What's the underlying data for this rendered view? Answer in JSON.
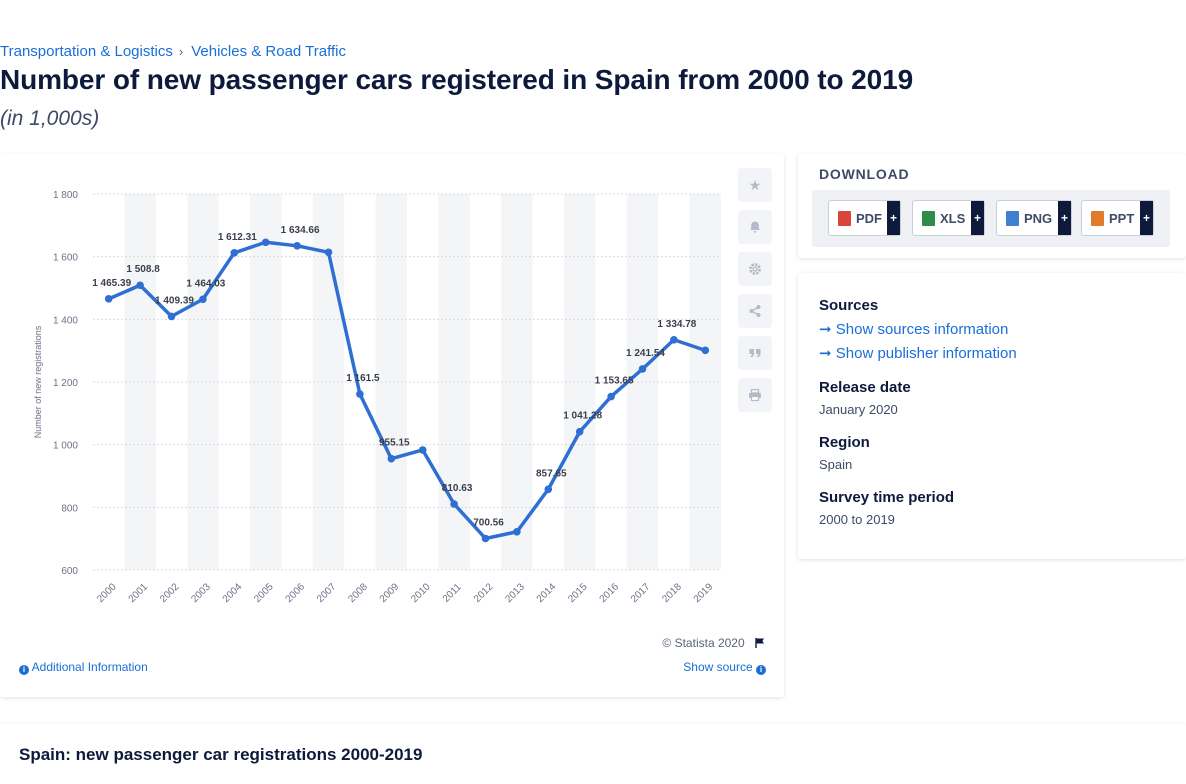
{
  "breadcrumb": [
    "Transportation & Logistics",
    "Vehicles & Road Traffic"
  ],
  "title": "Number of new passenger cars registered in Spain from 2000 to 2019",
  "subtitle": "(in 1,000s)",
  "chart_footer": {
    "copyright": "© Statista 2020",
    "additional_info": "Additional Information",
    "show_source": "Show source"
  },
  "colors": {
    "line": "#2f6ed2",
    "accent": "#1a6ed8",
    "dark": "#0d1a3b"
  },
  "tool_icons": [
    "star-icon",
    "bell-icon",
    "gear-icon",
    "share-icon",
    "quote-icon",
    "print-icon"
  ],
  "download": {
    "title": "DOWNLOAD",
    "buttons": [
      {
        "label": "PDF",
        "color": "#d9453a"
      },
      {
        "label": "XLS",
        "color": "#2e8b4a"
      },
      {
        "label": "PNG",
        "color": "#3f7fd0"
      },
      {
        "label": "PPT",
        "color": "#e07b2a"
      }
    ],
    "plus": "+"
  },
  "meta": {
    "sources_heading": "Sources",
    "sources_link": "Show sources information",
    "publisher_link": "Show publisher information",
    "release_heading": "Release date",
    "release_value": "January 2020",
    "region_heading": "Region",
    "region_value": "Spain",
    "survey_heading": "Survey time period",
    "survey_value": "2000 to 2019"
  },
  "bottom_title": "Spain: new passenger car registrations 2000-2019",
  "chart_data": {
    "type": "line",
    "x": [
      "2000",
      "2001",
      "2002",
      "2003",
      "2004",
      "2005",
      "2006",
      "2007",
      "2008",
      "2009",
      "2010",
      "2011",
      "2012",
      "2013",
      "2014",
      "2015",
      "2016",
      "2017",
      "2018",
      "2019"
    ],
    "values": [
      1465.39,
      1508.8,
      1409.39,
      1464.03,
      1612.31,
      1646,
      1634.66,
      1614,
      1161.5,
      955.15,
      983,
      810.63,
      700.56,
      722,
      857.65,
      1041.28,
      1153.65,
      1241.54,
      1334.78,
      1301
    ],
    "data_labels": [
      "1 465.39",
      "1 508.8",
      "1 409.39",
      "1 464.03",
      "1 612.31",
      "",
      "1 634.66",
      "",
      "1 161.5",
      "955.15",
      "",
      "810.63",
      "700.56",
      "",
      "857.65",
      "1 041.28",
      "1 153.65",
      "1 241.54",
      "1 334.78",
      ""
    ],
    "ylabel": "Number of new registrations",
    "ylim": [
      600,
      1800
    ],
    "yticks": [
      600,
      800,
      1000,
      1200,
      1400,
      1600,
      1800
    ],
    "ytick_labels": [
      "600",
      "800",
      "1 000",
      "1 200",
      "1 400",
      "1 600",
      "1 800"
    ],
    "grid": true,
    "legend": "none"
  }
}
